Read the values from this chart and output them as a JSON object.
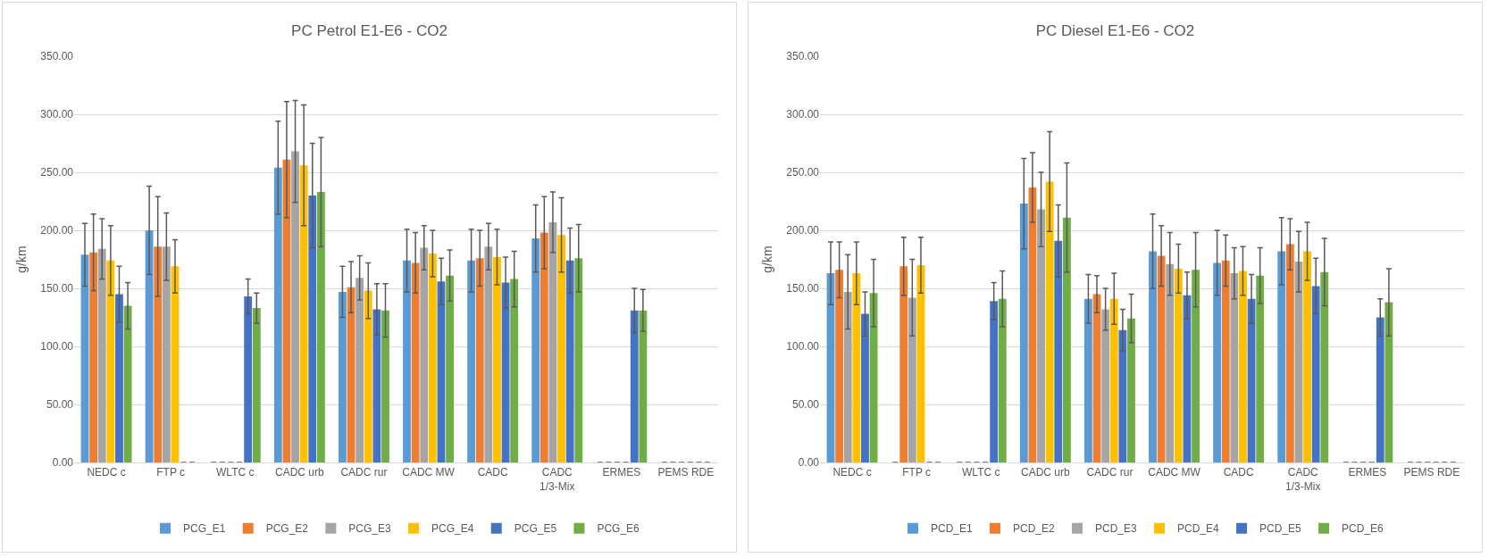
{
  "chart_data": [
    {
      "type": "bar",
      "title": "PC Petrol E1-E6 - CO2",
      "ylabel": "g/km",
      "categories": [
        "NEDC c",
        "FTP c",
        "WLTC c",
        "CADC urb",
        "CADC rur",
        "CADC MW",
        "CADC",
        "CADC 1/3-Mix",
        "ERMES",
        "PEMS RDE"
      ],
      "ylim": [
        0,
        350
      ],
      "yticks": [
        {
          "value": 0,
          "label": "0.00"
        },
        {
          "value": 50,
          "label": "50.00"
        },
        {
          "value": 100,
          "label": "100.00"
        },
        {
          "value": 150,
          "label": "150.00"
        },
        {
          "value": 200,
          "label": "200.00"
        },
        {
          "value": 250,
          "label": "250.00"
        },
        {
          "value": 300,
          "label": "300.00"
        },
        {
          "value": 350,
          "label": "350.00"
        }
      ],
      "grid": "y",
      "legend": "bottom",
      "series": [
        {
          "name": "PCG_E1",
          "color": "#5b9bd5",
          "values": [
            179,
            200,
            0,
            254,
            147,
            174,
            174,
            193,
            0,
            0
          ],
          "errors": [
            27,
            38,
            null,
            40,
            22,
            27,
            27,
            29,
            null,
            null
          ]
        },
        {
          "name": "PCG_E2",
          "color": "#ed7d31",
          "values": [
            181,
            186,
            0,
            261,
            151,
            172,
            176,
            198,
            0,
            0
          ],
          "errors": [
            33,
            43,
            null,
            50,
            22,
            26,
            24,
            31,
            null,
            null
          ]
        },
        {
          "name": "PCG_E3",
          "color": "#a5a5a5",
          "values": [
            184,
            186,
            0,
            268,
            159,
            185,
            186,
            207,
            0,
            0
          ],
          "errors": [
            26,
            29,
            null,
            44,
            19,
            19,
            20,
            26,
            null,
            null
          ]
        },
        {
          "name": "PCG_E4",
          "color": "#ffc000",
          "values": [
            174,
            169,
            0,
            256,
            148,
            180,
            177,
            196,
            0,
            0
          ],
          "errors": [
            30,
            23,
            null,
            52,
            24,
            20,
            24,
            32,
            null,
            null
          ]
        },
        {
          "name": "PCG_E5",
          "color": "#4472c4",
          "values": [
            145,
            0,
            143,
            230,
            132,
            156,
            155,
            174,
            131,
            0
          ],
          "errors": [
            24,
            null,
            15,
            45,
            22,
            20,
            22,
            28,
            19,
            null
          ]
        },
        {
          "name": "PCG_E6",
          "color": "#70ad47",
          "values": [
            135,
            0,
            133,
            233,
            131,
            161,
            158,
            176,
            131,
            0
          ],
          "errors": [
            20,
            null,
            13,
            47,
            23,
            22,
            24,
            29,
            18,
            null
          ]
        }
      ]
    },
    {
      "type": "bar",
      "title": "PC Diesel E1-E6 - CO2",
      "ylabel": "g/km",
      "categories": [
        "NEDC c",
        "FTP c",
        "WLTC c",
        "CADC urb",
        "CADC rur",
        "CADC MW",
        "CADC",
        "CADC 1/3-Mix",
        "ERMES",
        "PEMS RDE"
      ],
      "ylim": [
        0,
        350
      ],
      "yticks": [
        {
          "value": 0,
          "label": "0.00"
        },
        {
          "value": 50,
          "label": "50.00"
        },
        {
          "value": 100,
          "label": "100.00"
        },
        {
          "value": 150,
          "label": "150.00"
        },
        {
          "value": 200,
          "label": "200.00"
        },
        {
          "value": 250,
          "label": "250.00"
        },
        {
          "value": 300,
          "label": "300.00"
        },
        {
          "value": 350,
          "label": "350.00"
        }
      ],
      "grid": "y",
      "legend": "bottom",
      "series": [
        {
          "name": "PCD_E1",
          "color": "#5b9bd5",
          "values": [
            163,
            0,
            0,
            223,
            141,
            182,
            172,
            182,
            0,
            0
          ],
          "errors": [
            27,
            null,
            null,
            39,
            21,
            32,
            28,
            29,
            null,
            null
          ]
        },
        {
          "name": "PCD_E2",
          "color": "#ed7d31",
          "values": [
            166,
            169,
            0,
            237,
            145,
            178,
            174,
            188,
            0,
            0
          ],
          "errors": [
            24,
            25,
            null,
            30,
            16,
            26,
            22,
            22,
            null,
            null
          ]
        },
        {
          "name": "PCD_E3",
          "color": "#a5a5a5",
          "values": [
            147,
            142,
            0,
            218,
            132,
            171,
            163,
            173,
            0,
            0
          ],
          "errors": [
            32,
            33,
            null,
            32,
            18,
            27,
            22,
            26,
            null,
            null
          ]
        },
        {
          "name": "PCD_E4",
          "color": "#ffc000",
          "values": [
            163,
            170,
            0,
            242,
            141,
            167,
            165,
            182,
            0,
            0
          ],
          "errors": [
            27,
            24,
            null,
            43,
            22,
            21,
            21,
            25,
            null,
            null
          ]
        },
        {
          "name": "PCD_E5",
          "color": "#4472c4",
          "values": [
            128,
            0,
            139,
            191,
            114,
            144,
            141,
            152,
            125,
            0
          ],
          "errors": [
            19,
            null,
            16,
            31,
            18,
            20,
            21,
            24,
            16,
            null
          ]
        },
        {
          "name": "PCD_E6",
          "color": "#70ad47",
          "values": [
            146,
            0,
            141,
            211,
            124,
            166,
            161,
            164,
            138,
            0
          ],
          "errors": [
            29,
            null,
            24,
            47,
            21,
            32,
            24,
            29,
            29,
            null
          ]
        }
      ]
    }
  ]
}
